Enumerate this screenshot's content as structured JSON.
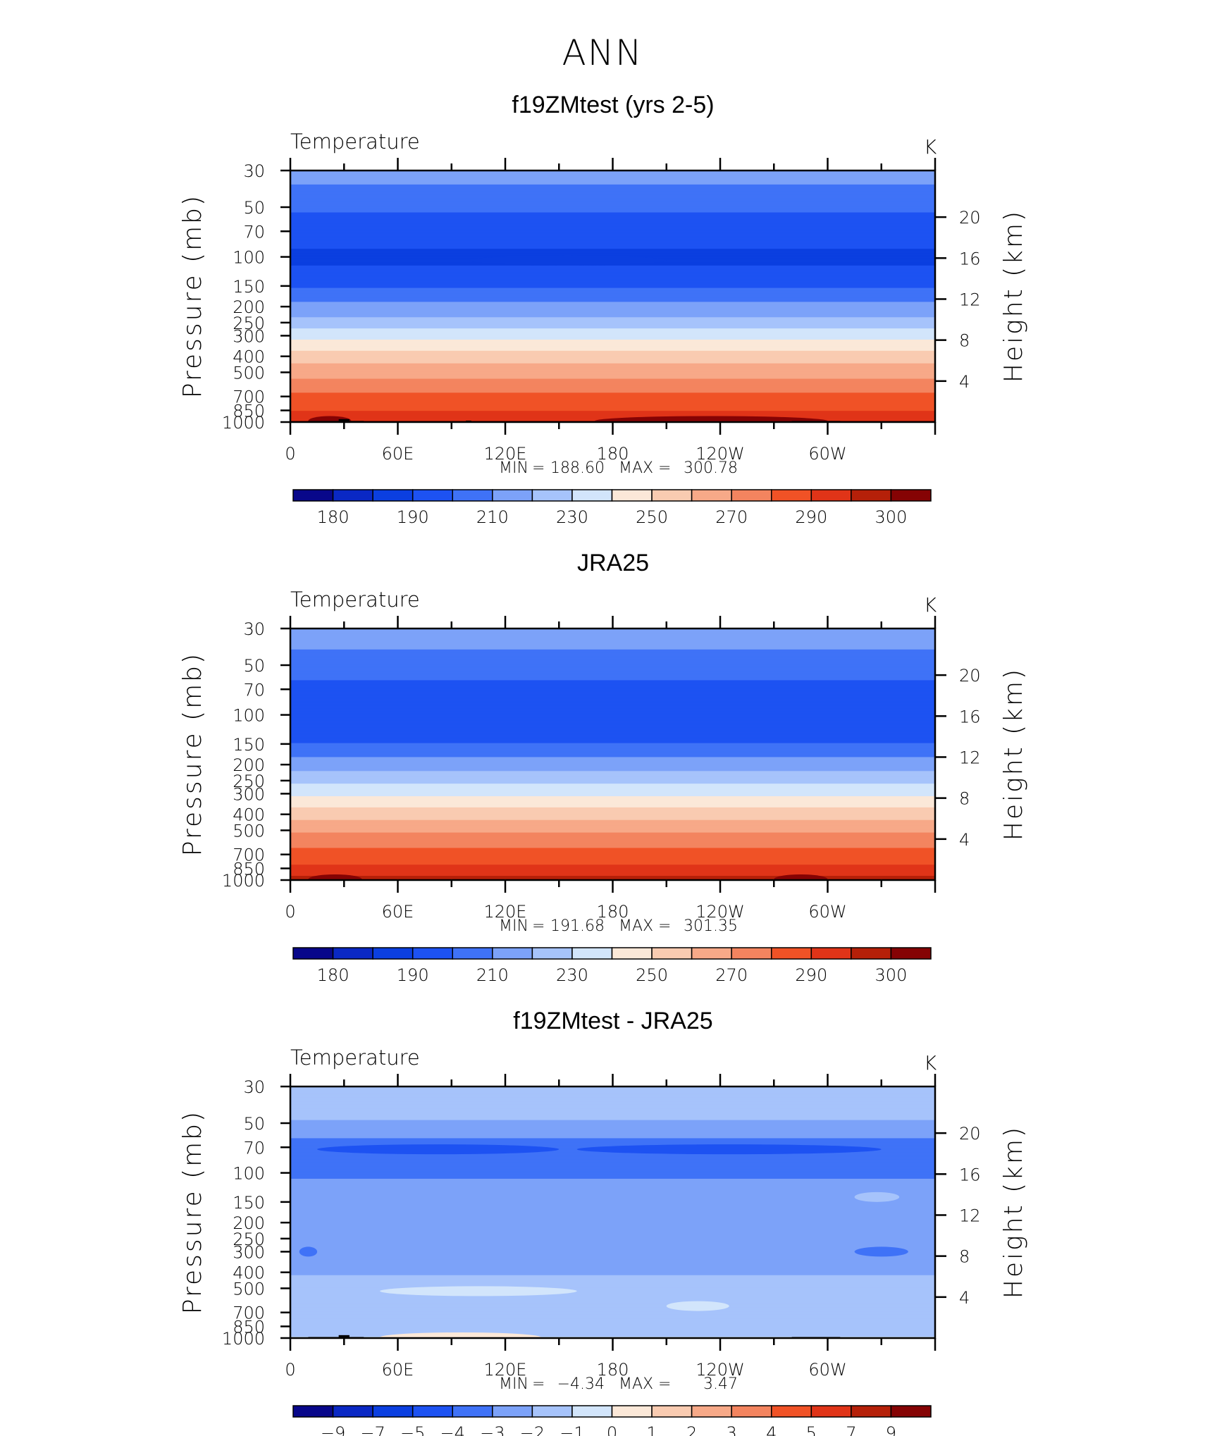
{
  "figure_title": "ANN",
  "abs_levels": [
    180,
    185,
    190,
    200,
    210,
    220,
    230,
    240,
    250,
    260,
    270,
    280,
    290,
    295,
    300
  ],
  "abs_colors": [
    "#08078a",
    "#0a28c4",
    "#0b3fe0",
    "#1d52f2",
    "#3f72f7",
    "#7ca2f9",
    "#a6c3fb",
    "#d2e5fb",
    "#fbe8d8",
    "#f9cbb1",
    "#f7a988",
    "#f3845f",
    "#f05226",
    "#e03418",
    "#b52009",
    "#850304"
  ],
  "diff_levels": [
    -9,
    -7,
    -5,
    -4,
    -3,
    -2,
    -1,
    0,
    1,
    2,
    3,
    4,
    5,
    7,
    9
  ],
  "colorbar_labels_abs": [
    "180",
    "190",
    "210",
    "230",
    "250",
    "270",
    "290",
    "300"
  ],
  "colorbar_labels_diff": [
    "−9",
    "−7",
    "−5",
    "−4",
    "−3",
    "−2",
    "−1",
    "0",
    "1",
    "2",
    "3",
    "4",
    "5",
    "7",
    "9"
  ],
  "chart_data": [
    {
      "type": "heatmap",
      "title": "f19ZMtest (yrs 2-5)",
      "left_label": "Temperature",
      "units": "K",
      "xlabel": "",
      "ylabel": "Pressure (mb)",
      "ylabel_right": "Height (km)",
      "x_ticks": [
        "0",
        "60E",
        "120E",
        "180",
        "120W",
        "60W"
      ],
      "y_ticks": [
        "30",
        "50",
        "70",
        "100",
        "150",
        "200",
        "250",
        "300",
        "400",
        "500",
        "700",
        "850",
        "1000"
      ],
      "height_ticks": [
        "20",
        "16",
        "12",
        "8",
        "4"
      ],
      "stats": {
        "min_label": "MIN",
        "min": "188.60",
        "max_label": "MAX",
        "max": "300.78"
      },
      "profile": [
        [
          30,
          214
        ],
        [
          45,
          206
        ],
        [
          55,
          199
        ],
        [
          70,
          192
        ],
        [
          100,
          189
        ],
        [
          140,
          192
        ],
        [
          160,
          203
        ],
        [
          200,
          213
        ],
        [
          250,
          224
        ],
        [
          300,
          237
        ],
        [
          400,
          255
        ],
        [
          500,
          266
        ],
        [
          600,
          275
        ],
        [
          700,
          283
        ],
        [
          850,
          290
        ],
        [
          1000,
          296
        ]
      ],
      "features": [
        {
          "x0": 100,
          "x1": 210,
          "p": 105,
          "value": 187
        },
        {
          "x0": 10,
          "x1": 34,
          "p": 985,
          "value": 300
        },
        {
          "x0": 170,
          "x1": 300,
          "p": 985,
          "value": 300
        }
      ],
      "topography": [
        {
          "x0": 10,
          "x1": 41,
          "p": 985
        },
        {
          "x0": 27,
          "x1": 33,
          "p": 960
        },
        {
          "x0": 98,
          "x1": 101,
          "p": 980
        },
        {
          "x0": 280,
          "x1": 307,
          "p": 985
        }
      ]
    },
    {
      "type": "heatmap",
      "title": "JRA25",
      "left_label": "Temperature",
      "units": "K",
      "xlabel": "",
      "ylabel": "Pressure (mb)",
      "ylabel_right": "Height (km)",
      "x_ticks": [
        "0",
        "60E",
        "120E",
        "180",
        "120W",
        "60W"
      ],
      "y_ticks": [
        "30",
        "50",
        "70",
        "100",
        "150",
        "200",
        "250",
        "300",
        "400",
        "500",
        "700",
        "850",
        "1000"
      ],
      "height_ticks": [
        "20",
        "16",
        "12",
        "8",
        "4"
      ],
      "stats": {
        "min_label": "MIN",
        "min": "191.68",
        "max_label": "MAX",
        "max": "301.35"
      },
      "profile": [
        [
          30,
          217
        ],
        [
          40,
          210
        ],
        [
          55,
          204
        ],
        [
          70,
          196
        ],
        [
          100,
          193
        ],
        [
          140,
          196
        ],
        [
          160,
          205
        ],
        [
          200,
          215
        ],
        [
          250,
          227
        ],
        [
          300,
          238
        ],
        [
          400,
          256
        ],
        [
          500,
          268
        ],
        [
          600,
          277
        ],
        [
          700,
          285
        ],
        [
          850,
          292
        ],
        [
          1000,
          297
        ]
      ],
      "features": [
        {
          "x0": 10,
          "x1": 40,
          "p": 990,
          "value": 300
        },
        {
          "x0": 270,
          "x1": 300,
          "p": 990,
          "value": 300
        }
      ],
      "topography": []
    },
    {
      "type": "heatmap",
      "title": "f19ZMtest - JRA25",
      "left_label": "Temperature",
      "units": "K",
      "xlabel": "",
      "ylabel": "Pressure (mb)",
      "ylabel_right": "Height (km)",
      "x_ticks": [
        "0",
        "60E",
        "120E",
        "180",
        "120W",
        "60W"
      ],
      "y_ticks": [
        "30",
        "50",
        "70",
        "100",
        "150",
        "200",
        "250",
        "300",
        "400",
        "500",
        "700",
        "850",
        "1000"
      ],
      "height_ticks": [
        "20",
        "16",
        "12",
        "8",
        "4"
      ],
      "stats": {
        "min_label": "MIN",
        "min": "−4.34",
        "max_label": "MAX",
        "max": "3.47"
      },
      "profile": [
        [
          30,
          -1.5
        ],
        [
          45,
          -1.8
        ],
        [
          55,
          -2.4
        ],
        [
          65,
          -3.3
        ],
        [
          75,
          -3.6
        ],
        [
          90,
          -3.2
        ],
        [
          120,
          -2.9
        ],
        [
          200,
          -2.7
        ],
        [
          300,
          -2.5
        ],
        [
          400,
          -2.1
        ],
        [
          500,
          -1.6
        ],
        [
          700,
          -1.4
        ],
        [
          850,
          -1.2
        ],
        [
          950,
          -1.5
        ],
        [
          1000,
          -0.5
        ]
      ],
      "features": [
        {
          "x0": 15,
          "x1": 150,
          "p": 72,
          "value": -4.3
        },
        {
          "x0": 160,
          "x1": 330,
          "p": 72,
          "value": -4.3
        },
        {
          "x0": 315,
          "x1": 345,
          "p": 300,
          "value": -3.5
        },
        {
          "x0": 5,
          "x1": 15,
          "p": 300,
          "value": -3.5
        },
        {
          "x0": 50,
          "x1": 160,
          "p": 520,
          "value": -0.5
        },
        {
          "x0": 210,
          "x1": 245,
          "p": 640,
          "value": -0.5
        },
        {
          "x0": 315,
          "x1": 340,
          "p": 140,
          "value": -1.5
        },
        {
          "x0": 50,
          "x1": 140,
          "p": 990,
          "value": 0.5
        }
      ],
      "topography": [
        {
          "x0": 10,
          "x1": 41,
          "p": 985
        },
        {
          "x0": 27,
          "x1": 33,
          "p": 960
        },
        {
          "x0": 280,
          "x1": 307,
          "p": 985
        }
      ]
    }
  ]
}
